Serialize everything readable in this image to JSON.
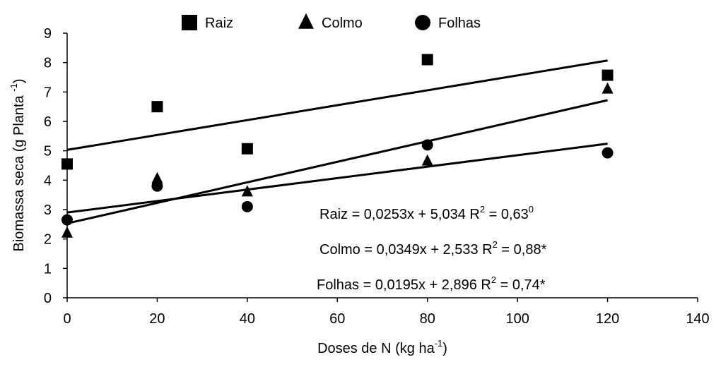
{
  "chart_data": {
    "type": "scatter",
    "xlabel": "Doses de N (kg ha",
    "xlabel_sup": "-1",
    "xlabel_end": ")",
    "ylabel": "Biomassa seca (g Planta ",
    "ylabel_sup": "-1",
    "ylabel_end": ")",
    "xlim": [
      0,
      140
    ],
    "xticks": [
      0,
      20,
      40,
      60,
      80,
      100,
      120,
      140
    ],
    "ylim": [
      0,
      9
    ],
    "yticks": [
      0,
      1,
      2,
      3,
      4,
      5,
      6,
      7,
      8,
      9
    ],
    "legend": "top",
    "series": [
      {
        "name": "Raiz",
        "marker": "square",
        "color": "#000000",
        "x": [
          0,
          20,
          40,
          80,
          120
        ],
        "values": [
          4.55,
          6.5,
          5.07,
          8.1,
          7.57
        ],
        "trend": {
          "x": [
            0,
            120
          ],
          "values": [
            5.03,
            8.07
          ]
        }
      },
      {
        "name": "Colmo",
        "marker": "triangle",
        "color": "#000000",
        "x": [
          0,
          20,
          40,
          80,
          120
        ],
        "values": [
          2.2,
          4.05,
          3.6,
          4.65,
          7.1
        ],
        "trend": {
          "x": [
            0,
            120
          ],
          "values": [
            2.53,
            6.72
          ]
        }
      },
      {
        "name": "Folhas",
        "marker": "circle",
        "color": "#000000",
        "x": [
          0,
          20,
          40,
          80,
          120
        ],
        "values": [
          2.65,
          3.8,
          3.1,
          5.2,
          4.93
        ],
        "trend": {
          "x": [
            0,
            120
          ],
          "values": [
            2.9,
            5.24
          ]
        }
      }
    ],
    "annotations": [
      {
        "text": "Raiz = 0,0253x + 5,034 R",
        "sup": "2",
        "text2": " = 0,63",
        "sup2": "0"
      },
      {
        "text": "Colmo = 0,0349x + 2,533 R",
        "sup": "2",
        "text2": " = 0,88*"
      },
      {
        "text": "Folhas = 0,0195x + 2,896 R",
        "sup": "2",
        "text2": " = 0,74*"
      }
    ]
  }
}
